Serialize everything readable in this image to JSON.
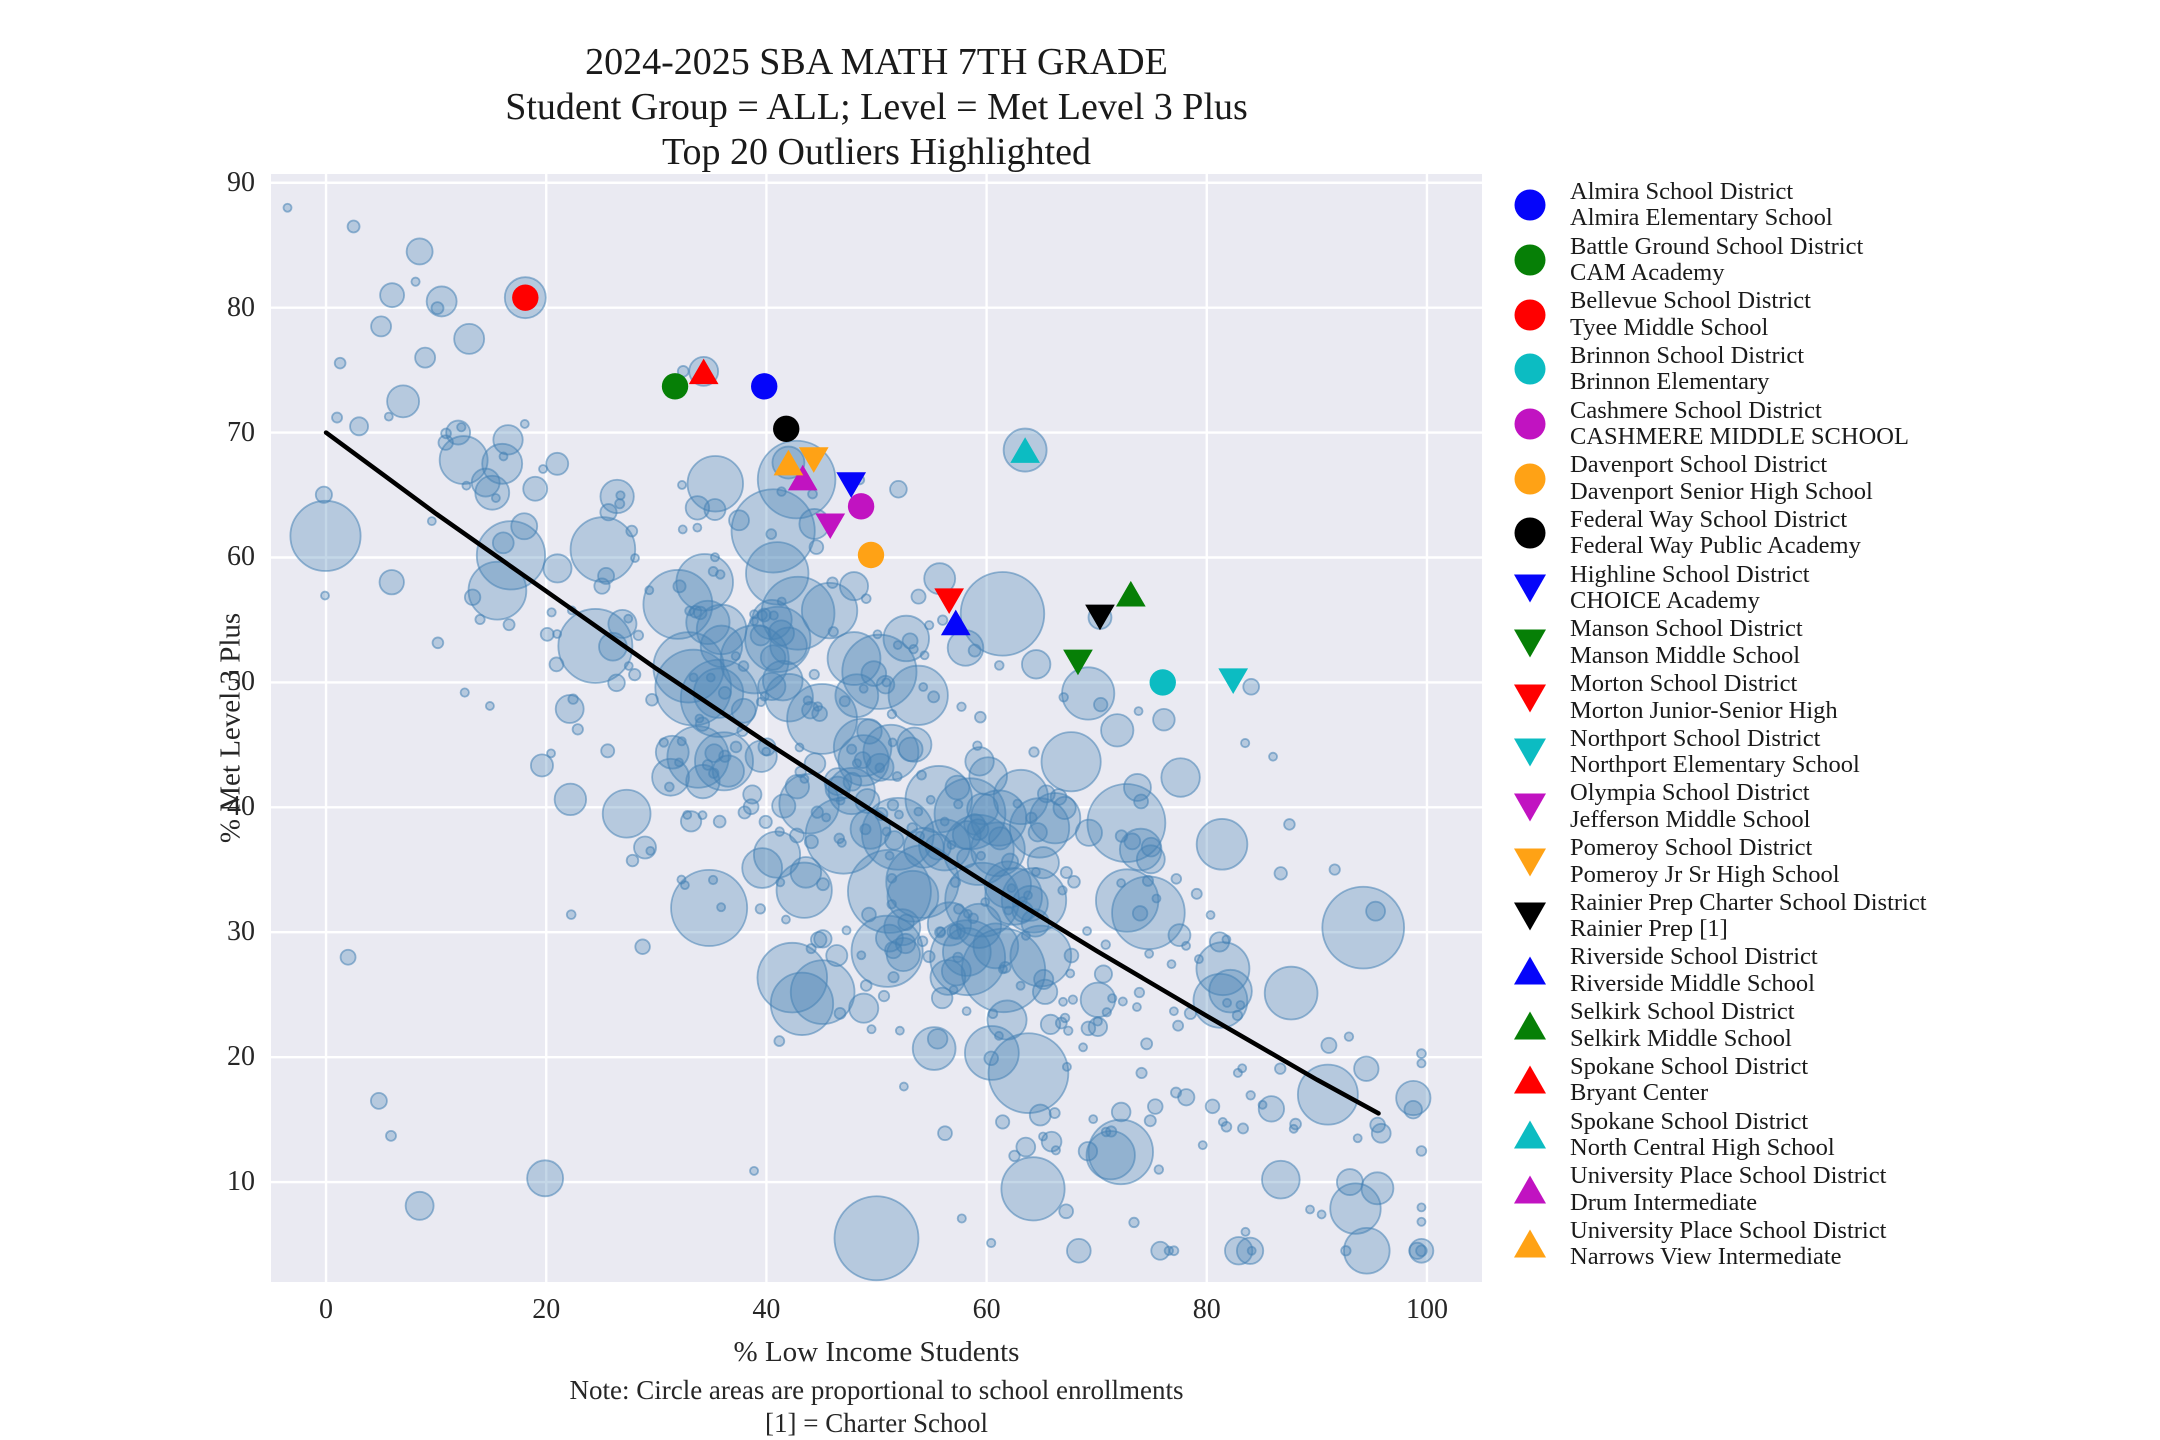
{
  "title": {
    "line1": "2024-2025 SBA MATH 7TH GRADE",
    "line2": "Student Group = ALL; Level = Met Level 3 Plus",
    "line3": "Top 20 Outliers Highlighted"
  },
  "notes": {
    "line1": "Note: Circle areas are proportional to school enrollments",
    "line2": "[1] = Charter School"
  },
  "axes": {
    "x": {
      "label": "% Low Income Students",
      "ticks": [
        0,
        20,
        40,
        60,
        80,
        100
      ],
      "range": [
        -5,
        105
      ]
    },
    "y": {
      "label": "% Met Level 3 Plus",
      "ticks": [
        10,
        20,
        30,
        40,
        50,
        60,
        70,
        80,
        90
      ],
      "range": [
        2,
        90.7
      ]
    }
  },
  "colors": {
    "plot_bg": "#EAEAF2",
    "grid": "#FFFFFF",
    "bubble_fill": "rgba(70,130,180,0.32)",
    "bubble_stroke": "rgba(70,130,180,0.55)",
    "trend": "#000000",
    "blue": "#0505FA",
    "green": "#067F06",
    "red": "#FF0000",
    "teal": "#0CBCC2",
    "magenta": "#C113C1",
    "orange": "#FFA215",
    "black": "#000000"
  },
  "chart_data": {
    "type": "scatter",
    "title": "2024-2025 SBA MATH 7TH GRADE; Student Group = ALL; Level = Met Level 3 Plus; Top 20 Outliers Highlighted",
    "xlabel": "% Low Income Students",
    "ylabel": "% Met Level 3 Plus",
    "xlim": [
      -5,
      105
    ],
    "ylim": [
      2,
      90.7
    ],
    "grid": true,
    "legend_position": "right",
    "series": [
      {
        "district": "Almira School District",
        "school": "Almira Elementary School",
        "marker": "circle",
        "color_key": "blue",
        "x": 39.8,
        "y": 73.7
      },
      {
        "district": "Battle Ground School District",
        "school": "CAM Academy",
        "marker": "circle",
        "color_key": "green",
        "x": 31.7,
        "y": 73.7
      },
      {
        "district": "Bellevue School District",
        "school": "Tyee Middle School",
        "marker": "circle",
        "color_key": "red",
        "x": 18.1,
        "y": 80.8,
        "ring_r": 20.5
      },
      {
        "district": "Brinnon School District",
        "school": "Brinnon Elementary",
        "marker": "circle",
        "color_key": "teal",
        "x": 76.0,
        "y": 50.0
      },
      {
        "district": "Cashmere School District",
        "school": "CASHMERE MIDDLE SCHOOL",
        "marker": "circle",
        "color_key": "magenta",
        "x": 48.6,
        "y": 64.1
      },
      {
        "district": "Davenport School District",
        "school": "Davenport Senior High School",
        "marker": "circle",
        "color_key": "orange",
        "x": 49.5,
        "y": 60.2
      },
      {
        "district": "Federal Way School District",
        "school": "Federal Way Public Academy",
        "marker": "circle",
        "color_key": "black",
        "x": 41.8,
        "y": 70.3
      },
      {
        "district": "Highline School District",
        "school": "CHOICE Academy",
        "marker": "triangle-down",
        "color_key": "blue",
        "x": 47.7,
        "y": 65.8
      },
      {
        "district": "Manson School District",
        "school": "Manson Middle School",
        "marker": "triangle-down",
        "color_key": "green",
        "x": 68.3,
        "y": 51.6
      },
      {
        "district": "Morton School District",
        "school": "Morton Junior-Senior High",
        "marker": "triangle-down",
        "color_key": "red",
        "x": 56.6,
        "y": 56.5
      },
      {
        "district": "Northport School District",
        "school": "Northport Elementary School",
        "marker": "triangle-down",
        "color_key": "teal",
        "x": 82.4,
        "y": 50.1
      },
      {
        "district": "Olympia School District",
        "school": "Jefferson Middle School",
        "marker": "triangle-down",
        "color_key": "magenta",
        "x": 45.8,
        "y": 62.5
      },
      {
        "district": "Pomeroy School District",
        "school": "Pomeroy Jr Sr High School",
        "marker": "triangle-down",
        "color_key": "orange",
        "x": 44.3,
        "y": 67.8
      },
      {
        "district": "Rainier Prep Charter School District",
        "school": "Rainier Prep [1]",
        "marker": "triangle-down",
        "color_key": "black",
        "x": 70.3,
        "y": 55.2,
        "ring_r": 11.5
      },
      {
        "district": "Riverside School District",
        "school": "Riverside Middle School",
        "marker": "triangle-up",
        "color_key": "blue",
        "x": 57.2,
        "y": 54.8
      },
      {
        "district": "Selkirk School District",
        "school": "Selkirk Middle School",
        "marker": "triangle-up",
        "color_key": "green",
        "x": 73.1,
        "y": 57.1
      },
      {
        "district": "Spokane School District",
        "school": "Bryant Center",
        "marker": "triangle-up",
        "color_key": "red",
        "x": 34.3,
        "y": 74.9,
        "ring_r": 14.5
      },
      {
        "district": "Spokane School District",
        "school": "North Central High School",
        "marker": "triangle-up",
        "color_key": "teal",
        "x": 63.5,
        "y": 68.6,
        "ring_r": 21.5
      },
      {
        "district": "University Place School District",
        "school": "Drum Intermediate",
        "marker": "triangle-up",
        "color_key": "magenta",
        "x": 43.3,
        "y": 66.4
      },
      {
        "district": "University Place School District",
        "school": "Narrows View Intermediate",
        "marker": "triangle-up",
        "color_key": "orange",
        "x": 42.0,
        "y": 67.6,
        "ring_r": 16
      }
    ],
    "trendline": {
      "type": "fit-curve",
      "points": [
        [
          0,
          70.0
        ],
        [
          10,
          63.5
        ],
        [
          20,
          57.3
        ],
        [
          30,
          51.1
        ],
        [
          40,
          45.2
        ],
        [
          50,
          39.5
        ],
        [
          60,
          33.9
        ],
        [
          70,
          28.5
        ],
        [
          80,
          23.3
        ],
        [
          90,
          18.2
        ],
        [
          95.6,
          15.5
        ]
      ]
    },
    "background_bubbles": {
      "description": "Unlabeled schools; circle areas proportional to enrollment; rendered procedurally to match the cloud",
      "generated": true,
      "count": 520,
      "seed": 11,
      "x_mean": 52,
      "x_sd": 21,
      "y_sd": 11.5,
      "r_min": 4,
      "r_add": 38,
      "feature_bubbles": [
        [
          50,
          5.5,
          42
        ],
        [
          91,
          17,
          30
        ],
        [
          95.5,
          9.5,
          16
        ],
        [
          93,
          10,
          13
        ],
        [
          2.5,
          86.5,
          6
        ],
        [
          8.5,
          84.5,
          13
        ],
        [
          6,
          81,
          12
        ],
        [
          10.5,
          80.5,
          15
        ],
        [
          5,
          78.5,
          10
        ],
        [
          13,
          77.5,
          15
        ],
        [
          9,
          76,
          10
        ],
        [
          7,
          72.5,
          16
        ],
        [
          12,
          70,
          12
        ],
        [
          16,
          67.5,
          20
        ],
        [
          14.5,
          66,
          14
        ],
        [
          19,
          65.5,
          12
        ],
        [
          21,
          67.5,
          11
        ],
        [
          18,
          62.5,
          13
        ],
        [
          12.5,
          67.8,
          24
        ],
        [
          3,
          70.5,
          9
        ],
        [
          1,
          71.2,
          5
        ],
        [
          4.8,
          16.5,
          8
        ],
        [
          5.9,
          13.7,
          5
        ],
        [
          8.5,
          8.1,
          14
        ],
        [
          19.9,
          10.3,
          18
        ],
        [
          2,
          28,
          7.5
        ]
      ]
    }
  }
}
